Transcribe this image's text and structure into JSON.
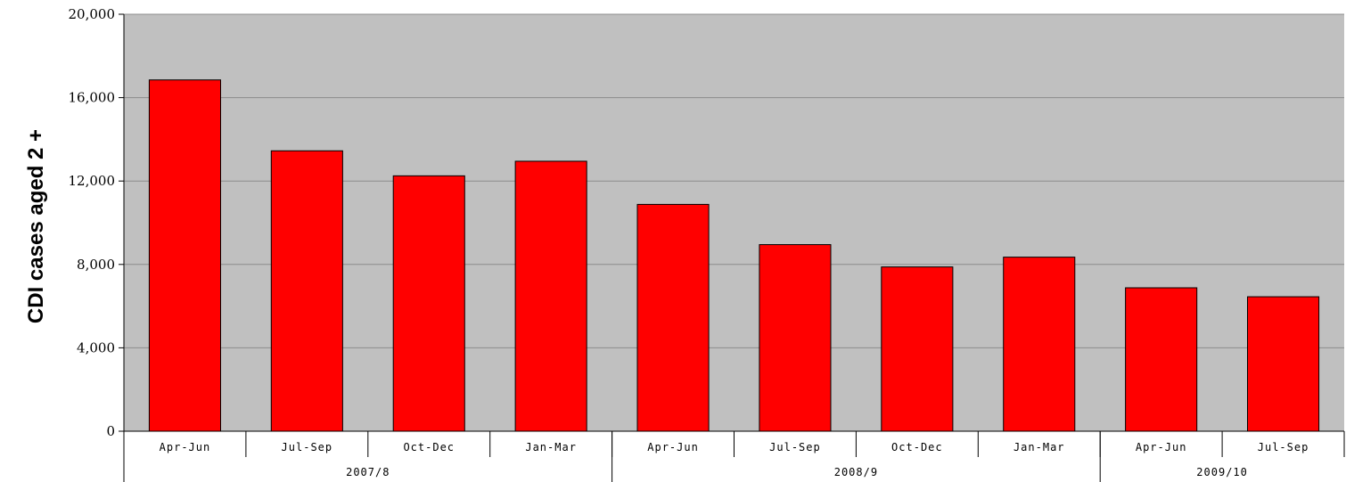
{
  "chart_data": {
    "type": "bar",
    "title": "",
    "xlabel": "",
    "ylabel": "CDI cases  aged 2 +",
    "ylim": [
      0,
      20000
    ],
    "yticks": [
      0,
      4000,
      8000,
      12000,
      16000,
      20000
    ],
    "ytick_labels": [
      "0",
      "4,000",
      "8,000",
      "12,000",
      "16,000",
      "20,000"
    ],
    "grid": true,
    "legend": "none",
    "categories": [
      "Apr-Jun",
      "Jul-Sep",
      "Oct-Dec",
      "Jan-Mar",
      "Apr-Jun",
      "Jul-Sep",
      "Oct-Dec",
      "Jan-Mar",
      "Apr-Jun",
      "Jul-Sep"
    ],
    "groups": [
      {
        "label": "2007/8",
        "count": 4
      },
      {
        "label": "2008/9",
        "count": 4
      },
      {
        "label": "2009/10",
        "count": 2
      }
    ],
    "values": [
      16850,
      13450,
      12250,
      12950,
      10880,
      8950,
      7880,
      8350,
      6880,
      6450
    ],
    "colors": {
      "bar": "#ff0000",
      "bar_edge": "#000000",
      "plot_background": "#c0c0c0",
      "gridline": "#8c8c8c"
    }
  }
}
